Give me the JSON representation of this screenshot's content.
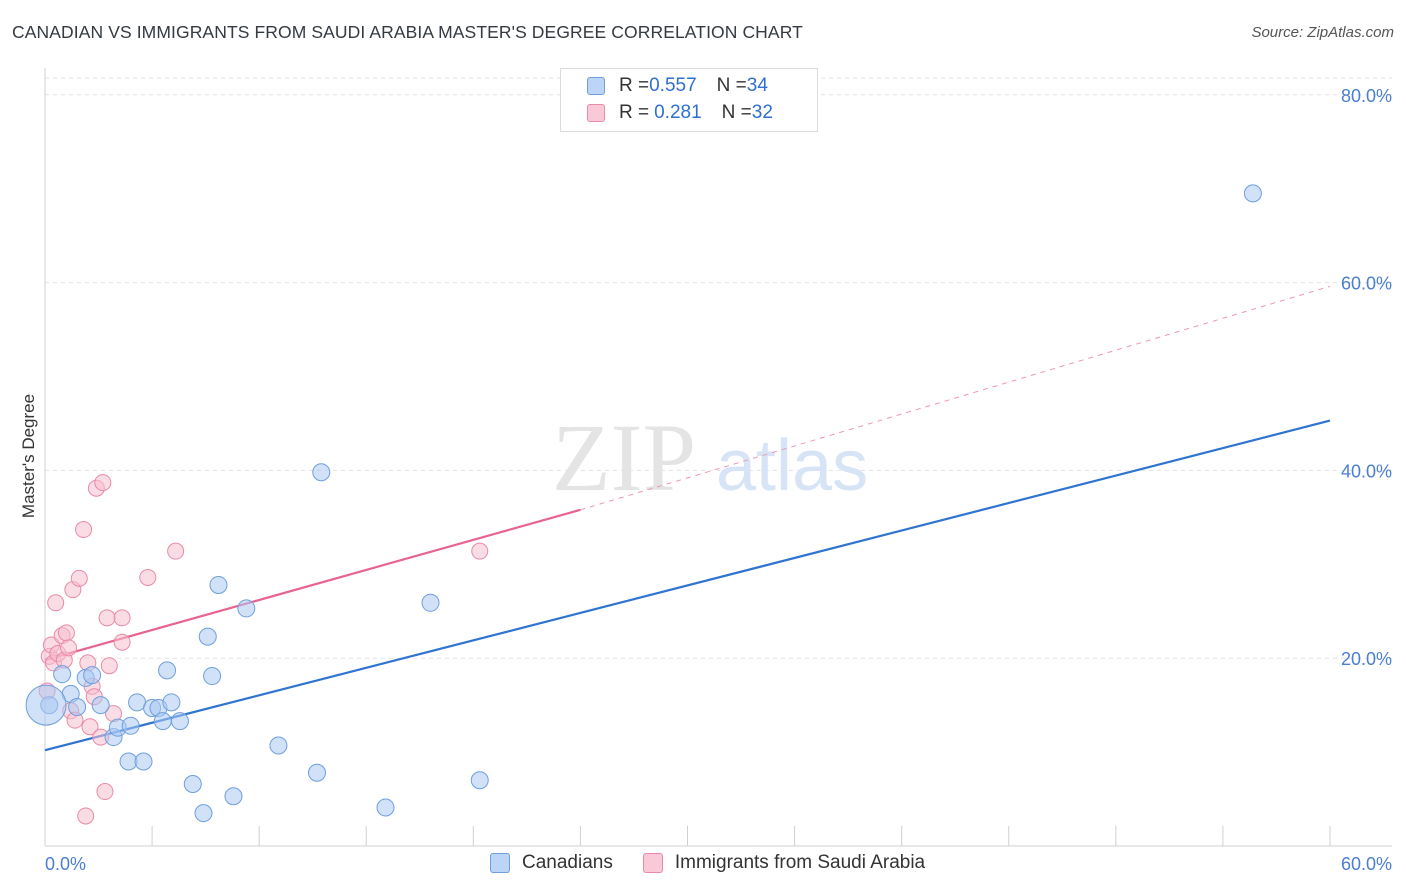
{
  "title": "CANADIAN VS IMMIGRANTS FROM SAUDI ARABIA MASTER'S DEGREE CORRELATION CHART",
  "source": "Source: ZipAtlas.com",
  "watermark": {
    "zip": "ZIP",
    "atlas": "atlas"
  },
  "legend": {
    "row1": {
      "r_label": "R = ",
      "r_value": "0.557",
      "n_label": "N = ",
      "n_value": "34"
    },
    "row2": {
      "r_label": "R = ",
      "r_value": "0.281",
      "n_label": "N = ",
      "n_value": "32"
    }
  },
  "bottom_legend": {
    "series1": "Canadians",
    "series2": "Immigrants from Saudi Arabia"
  },
  "colors": {
    "blue_fill": "#a9c8f2",
    "blue_stroke": "#6f9fdc",
    "blue_line": "#2f74d0",
    "pink_fill": "#f6bfd0",
    "pink_stroke": "#ea8aa8",
    "pink_line": "#e8638e",
    "grid": "#e3e3e3",
    "tick_text": "#4a7fd0"
  },
  "chart_data": {
    "type": "scatter",
    "title": "CANADIAN VS IMMIGRANTS FROM SAUDI ARABIA MASTER'S DEGREE CORRELATION CHART",
    "xlabel": "",
    "ylabel": "Master's Degree",
    "xlim": [
      0,
      60
    ],
    "ylim": [
      0,
      82
    ],
    "x_tick_labels": [
      "0.0%",
      "60.0%"
    ],
    "y_tick_values": [
      20,
      40,
      60,
      80
    ],
    "y_tick_labels": [
      "20.0%",
      "40.0%",
      "60.0%",
      "80.0%"
    ],
    "series": [
      {
        "name": "Canadians",
        "R": 0.557,
        "N": 34,
        "trend": {
          "x0": 0,
          "y0": 10.2,
          "x1": 60,
          "y1": 45.3
        },
        "points": [
          [
            0.2,
            15.0
          ],
          [
            0.8,
            18.3
          ],
          [
            1.2,
            16.2
          ],
          [
            1.5,
            14.8
          ],
          [
            1.9,
            17.9
          ],
          [
            2.2,
            18.2
          ],
          [
            2.6,
            15.0
          ],
          [
            3.2,
            11.6
          ],
          [
            3.4,
            12.6
          ],
          [
            3.9,
            9.0
          ],
          [
            4.0,
            12.8
          ],
          [
            4.3,
            15.3
          ],
          [
            4.6,
            9.0
          ],
          [
            5.0,
            14.7
          ],
          [
            5.3,
            14.7
          ],
          [
            5.5,
            13.3
          ],
          [
            5.7,
            18.7
          ],
          [
            5.9,
            15.3
          ],
          [
            6.3,
            13.3
          ],
          [
            6.9,
            6.6
          ],
          [
            7.4,
            3.5
          ],
          [
            7.6,
            22.3
          ],
          [
            7.8,
            18.1
          ],
          [
            8.1,
            27.8
          ],
          [
            8.8,
            5.3
          ],
          [
            9.4,
            25.3
          ],
          [
            10.9,
            10.7
          ],
          [
            12.7,
            7.8
          ],
          [
            12.9,
            39.8
          ],
          [
            15.9,
            4.1
          ],
          [
            18.0,
            25.9
          ],
          [
            20.3,
            7.0
          ],
          [
            56.4,
            69.5
          ],
          [
            0.05,
            15.0
          ]
        ]
      },
      {
        "name": "Immigrants from Saudi Arabia",
        "R": 0.281,
        "N": 32,
        "trend": {
          "x0": 0,
          "y0": 19.8,
          "x1": 25,
          "y1": 35.8,
          "dash_x1": 60,
          "dash_y1": 59.6
        },
        "points": [
          [
            0.1,
            16.5
          ],
          [
            0.2,
            20.2
          ],
          [
            0.3,
            21.4
          ],
          [
            0.4,
            19.5
          ],
          [
            0.5,
            25.9
          ],
          [
            0.6,
            20.5
          ],
          [
            0.8,
            22.4
          ],
          [
            0.9,
            19.8
          ],
          [
            1.0,
            22.7
          ],
          [
            1.1,
            21.1
          ],
          [
            1.2,
            14.4
          ],
          [
            1.3,
            27.3
          ],
          [
            1.4,
            13.4
          ],
          [
            1.6,
            28.5
          ],
          [
            1.8,
            33.7
          ],
          [
            1.9,
            3.2
          ],
          [
            2.0,
            19.5
          ],
          [
            2.1,
            12.7
          ],
          [
            2.2,
            17.0
          ],
          [
            2.3,
            15.9
          ],
          [
            2.4,
            38.1
          ],
          [
            2.6,
            11.6
          ],
          [
            2.7,
            38.7
          ],
          [
            2.8,
            5.8
          ],
          [
            2.9,
            24.3
          ],
          [
            3.0,
            19.2
          ],
          [
            3.2,
            14.1
          ],
          [
            3.6,
            21.7
          ],
          [
            3.6,
            24.3
          ],
          [
            4.8,
            28.6
          ],
          [
            6.1,
            31.4
          ],
          [
            20.3,
            31.4
          ]
        ]
      }
    ]
  }
}
